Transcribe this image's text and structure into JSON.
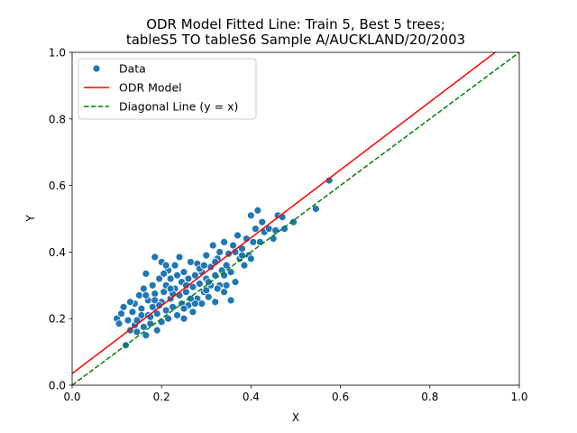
{
  "chart_data": {
    "type": "scatter",
    "title_line1": "ODR Model Fitted Line: Train 5, Best 5 trees;",
    "title_line2": "tableS5 TO tableS6 Sample A/AUCKLAND/20/2003",
    "xlabel": "X",
    "ylabel": "Y",
    "xlim": [
      0.0,
      1.0
    ],
    "ylim": [
      0.0,
      1.0
    ],
    "xticks": [
      "0.0",
      "0.2",
      "0.4",
      "0.6",
      "0.8",
      "1.0"
    ],
    "yticks": [
      "0.0",
      "0.2",
      "0.4",
      "0.6",
      "0.8",
      "1.0"
    ],
    "grid": false,
    "legend_position": "upper-left",
    "series": [
      {
        "name": "Data",
        "kind": "scatter",
        "color": "#1f77b4",
        "points": [
          [
            0.1,
            0.2
          ],
          [
            0.105,
            0.185
          ],
          [
            0.11,
            0.215
          ],
          [
            0.115,
            0.235
          ],
          [
            0.12,
            0.12
          ],
          [
            0.125,
            0.195
          ],
          [
            0.13,
            0.165
          ],
          [
            0.135,
            0.22
          ],
          [
            0.14,
            0.18
          ],
          [
            0.14,
            0.245
          ],
          [
            0.145,
            0.16
          ],
          [
            0.15,
            0.27
          ],
          [
            0.15,
            0.2
          ],
          [
            0.155,
            0.23
          ],
          [
            0.16,
            0.175
          ],
          [
            0.16,
            0.29
          ],
          [
            0.165,
            0.15
          ],
          [
            0.165,
            0.335
          ],
          [
            0.17,
            0.21
          ],
          [
            0.17,
            0.255
          ],
          [
            0.175,
            0.185
          ],
          [
            0.18,
            0.3
          ],
          [
            0.18,
            0.235
          ],
          [
            0.185,
            0.275
          ],
          [
            0.185,
            0.385
          ],
          [
            0.19,
            0.165
          ],
          [
            0.19,
            0.215
          ],
          [
            0.195,
            0.32
          ],
          [
            0.2,
            0.25
          ],
          [
            0.2,
            0.19
          ],
          [
            0.2,
            0.37
          ],
          [
            0.205,
            0.28
          ],
          [
            0.21,
            0.225
          ],
          [
            0.21,
            0.3
          ],
          [
            0.215,
            0.2
          ],
          [
            0.215,
            0.345
          ],
          [
            0.22,
            0.26
          ],
          [
            0.22,
            0.32
          ],
          [
            0.225,
            0.235
          ],
          [
            0.23,
            0.29
          ],
          [
            0.23,
            0.36
          ],
          [
            0.235,
            0.21
          ],
          [
            0.24,
            0.27
          ],
          [
            0.24,
            0.385
          ],
          [
            0.245,
            0.31
          ],
          [
            0.245,
            0.245
          ],
          [
            0.25,
            0.34
          ],
          [
            0.25,
            0.2
          ],
          [
            0.255,
            0.28
          ],
          [
            0.26,
            0.32
          ],
          [
            0.26,
            0.24
          ],
          [
            0.265,
            0.37
          ],
          [
            0.27,
            0.295
          ],
          [
            0.27,
            0.22
          ],
          [
            0.275,
            0.33
          ],
          [
            0.28,
            0.26
          ],
          [
            0.28,
            0.365
          ],
          [
            0.285,
            0.305
          ],
          [
            0.29,
            0.245
          ],
          [
            0.29,
            0.34
          ],
          [
            0.295,
            0.28
          ],
          [
            0.3,
            0.39
          ],
          [
            0.3,
            0.32
          ],
          [
            0.305,
            0.265
          ],
          [
            0.31,
            0.355
          ],
          [
            0.31,
            0.3
          ],
          [
            0.315,
            0.42
          ],
          [
            0.32,
            0.33
          ],
          [
            0.32,
            0.25
          ],
          [
            0.325,
            0.38
          ],
          [
            0.33,
            0.3
          ],
          [
            0.33,
            0.4
          ],
          [
            0.335,
            0.345
          ],
          [
            0.34,
            0.28
          ],
          [
            0.34,
            0.43
          ],
          [
            0.345,
            0.36
          ],
          [
            0.35,
            0.395
          ],
          [
            0.355,
            0.34
          ],
          [
            0.36,
            0.42
          ],
          [
            0.365,
            0.31
          ],
          [
            0.37,
            0.45
          ],
          [
            0.375,
            0.38
          ],
          [
            0.38,
            0.41
          ],
          [
            0.385,
            0.36
          ],
          [
            0.39,
            0.44
          ],
          [
            0.395,
            0.39
          ],
          [
            0.4,
            0.51
          ],
          [
            0.405,
            0.43
          ],
          [
            0.41,
            0.47
          ],
          [
            0.415,
            0.525
          ],
          [
            0.42,
            0.43
          ],
          [
            0.425,
            0.49
          ],
          [
            0.43,
            0.46
          ],
          [
            0.44,
            0.47
          ],
          [
            0.45,
            0.44
          ],
          [
            0.455,
            0.465
          ],
          [
            0.46,
            0.51
          ],
          [
            0.47,
            0.505
          ],
          [
            0.475,
            0.47
          ],
          [
            0.495,
            0.49
          ],
          [
            0.545,
            0.53
          ],
          [
            0.575,
            0.615
          ],
          [
            0.175,
            0.205
          ],
          [
            0.185,
            0.255
          ],
          [
            0.225,
            0.275
          ],
          [
            0.235,
            0.33
          ],
          [
            0.255,
            0.3
          ],
          [
            0.275,
            0.245
          ],
          [
            0.285,
            0.35
          ],
          [
            0.295,
            0.36
          ],
          [
            0.305,
            0.31
          ],
          [
            0.325,
            0.29
          ],
          [
            0.155,
            0.21
          ],
          [
            0.145,
            0.195
          ],
          [
            0.195,
            0.24
          ],
          [
            0.205,
            0.335
          ],
          [
            0.265,
            0.26
          ],
          [
            0.345,
            0.3
          ],
          [
            0.355,
            0.255
          ],
          [
            0.365,
            0.4
          ],
          [
            0.13,
            0.25
          ],
          [
            0.165,
            0.27
          ],
          [
            0.21,
            0.36
          ],
          [
            0.25,
            0.23
          ],
          [
            0.3,
            0.285
          ],
          [
            0.32,
            0.37
          ],
          [
            0.34,
            0.33
          ],
          [
            0.38,
            0.39
          ],
          [
            0.4,
            0.38
          ],
          [
            0.22,
            0.29
          ]
        ]
      },
      {
        "name": "ODR Model",
        "kind": "line",
        "color": "#ff0000",
        "dash": "solid",
        "slope": 1.02,
        "intercept": 0.035
      },
      {
        "name": "Diagonal Line (y = x)",
        "kind": "line",
        "color": "#008000",
        "dash": "dashed",
        "slope": 1.0,
        "intercept": 0.0
      }
    ]
  }
}
